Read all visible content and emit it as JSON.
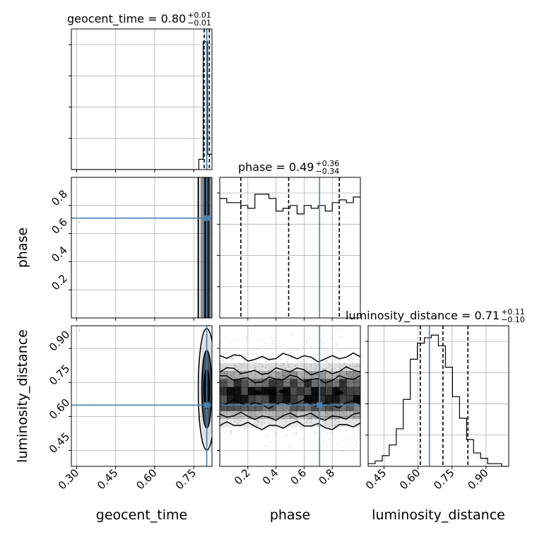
{
  "chart_data": {
    "type": "corner",
    "parameters": [
      "geocent_time",
      "phase",
      "luminosity_distance"
    ],
    "truth": {
      "geocent_time": 0.8,
      "phase": 0.71,
      "luminosity_distance": 0.65
    },
    "colors": {
      "truth": "#4682b4",
      "hist": "#000000",
      "grid": "#b0b0b0",
      "sample": "#808080"
    },
    "titles": [
      {
        "param": "geocent_time",
        "prefix": "geocent_time = 0.80",
        "plus": "+0.01",
        "minus": "−0.01"
      },
      {
        "param": "phase",
        "prefix": "phase = 0.49",
        "plus": "+0.36",
        "minus": "−0.34"
      },
      {
        "param": "luminosity_distance",
        "prefix": "luminosity_distance = 0.71",
        "plus": "+0.11",
        "minus": "−0.10"
      }
    ],
    "axis_labels": {
      "geocent_time": "geocent_time",
      "phase": "phase",
      "luminosity_distance": "luminosity_distance"
    },
    "ranges": {
      "geocent_time": [
        0.28,
        0.82
      ],
      "phase": [
        0.0,
        1.0
      ],
      "luminosity_distance": [
        0.38,
        1.0
      ]
    },
    "ticks": {
      "geocent_time": [
        "0.30",
        "0.45",
        "0.60",
        "0.75"
      ],
      "phase": [
        "0.2",
        "0.4",
        "0.6",
        "0.8"
      ],
      "luminosity_distance": [
        "0.45",
        "0.60",
        "0.75",
        "0.90"
      ]
    },
    "grid": true,
    "marginals": {
      "geocent_time": {
        "quantiles": [
          0.79,
          0.8,
          0.81
        ],
        "bins": [
          0.28,
          0.82
        ],
        "counts": [
          0,
          0,
          0,
          0,
          0,
          0,
          0,
          0,
          0,
          0,
          0,
          0,
          0,
          0,
          0,
          0,
          0,
          0,
          0,
          0,
          0,
          0,
          0,
          0,
          0,
          0,
          0,
          0,
          0,
          8,
          100,
          12
        ],
        "ylim": [
          0,
          110
        ]
      },
      "phase": {
        "quantiles": [
          0.15,
          0.49,
          0.85
        ],
        "counts": [
          85,
          82,
          82,
          80,
          78,
          88,
          88,
          85,
          76,
          78,
          80,
          74,
          80,
          78,
          80,
          76,
          82,
          84,
          82,
          86
        ],
        "ylim": [
          0,
          100
        ]
      },
      "luminosity_distance": {
        "quantiles": [
          0.61,
          0.71,
          0.82
        ],
        "counts": [
          2,
          4,
          8,
          16,
          28,
          50,
          80,
          92,
          96,
          98,
          90,
          74,
          52,
          36,
          20,
          10,
          6,
          2,
          2,
          0
        ],
        "ylim": [
          0,
          105
        ]
      }
    }
  }
}
